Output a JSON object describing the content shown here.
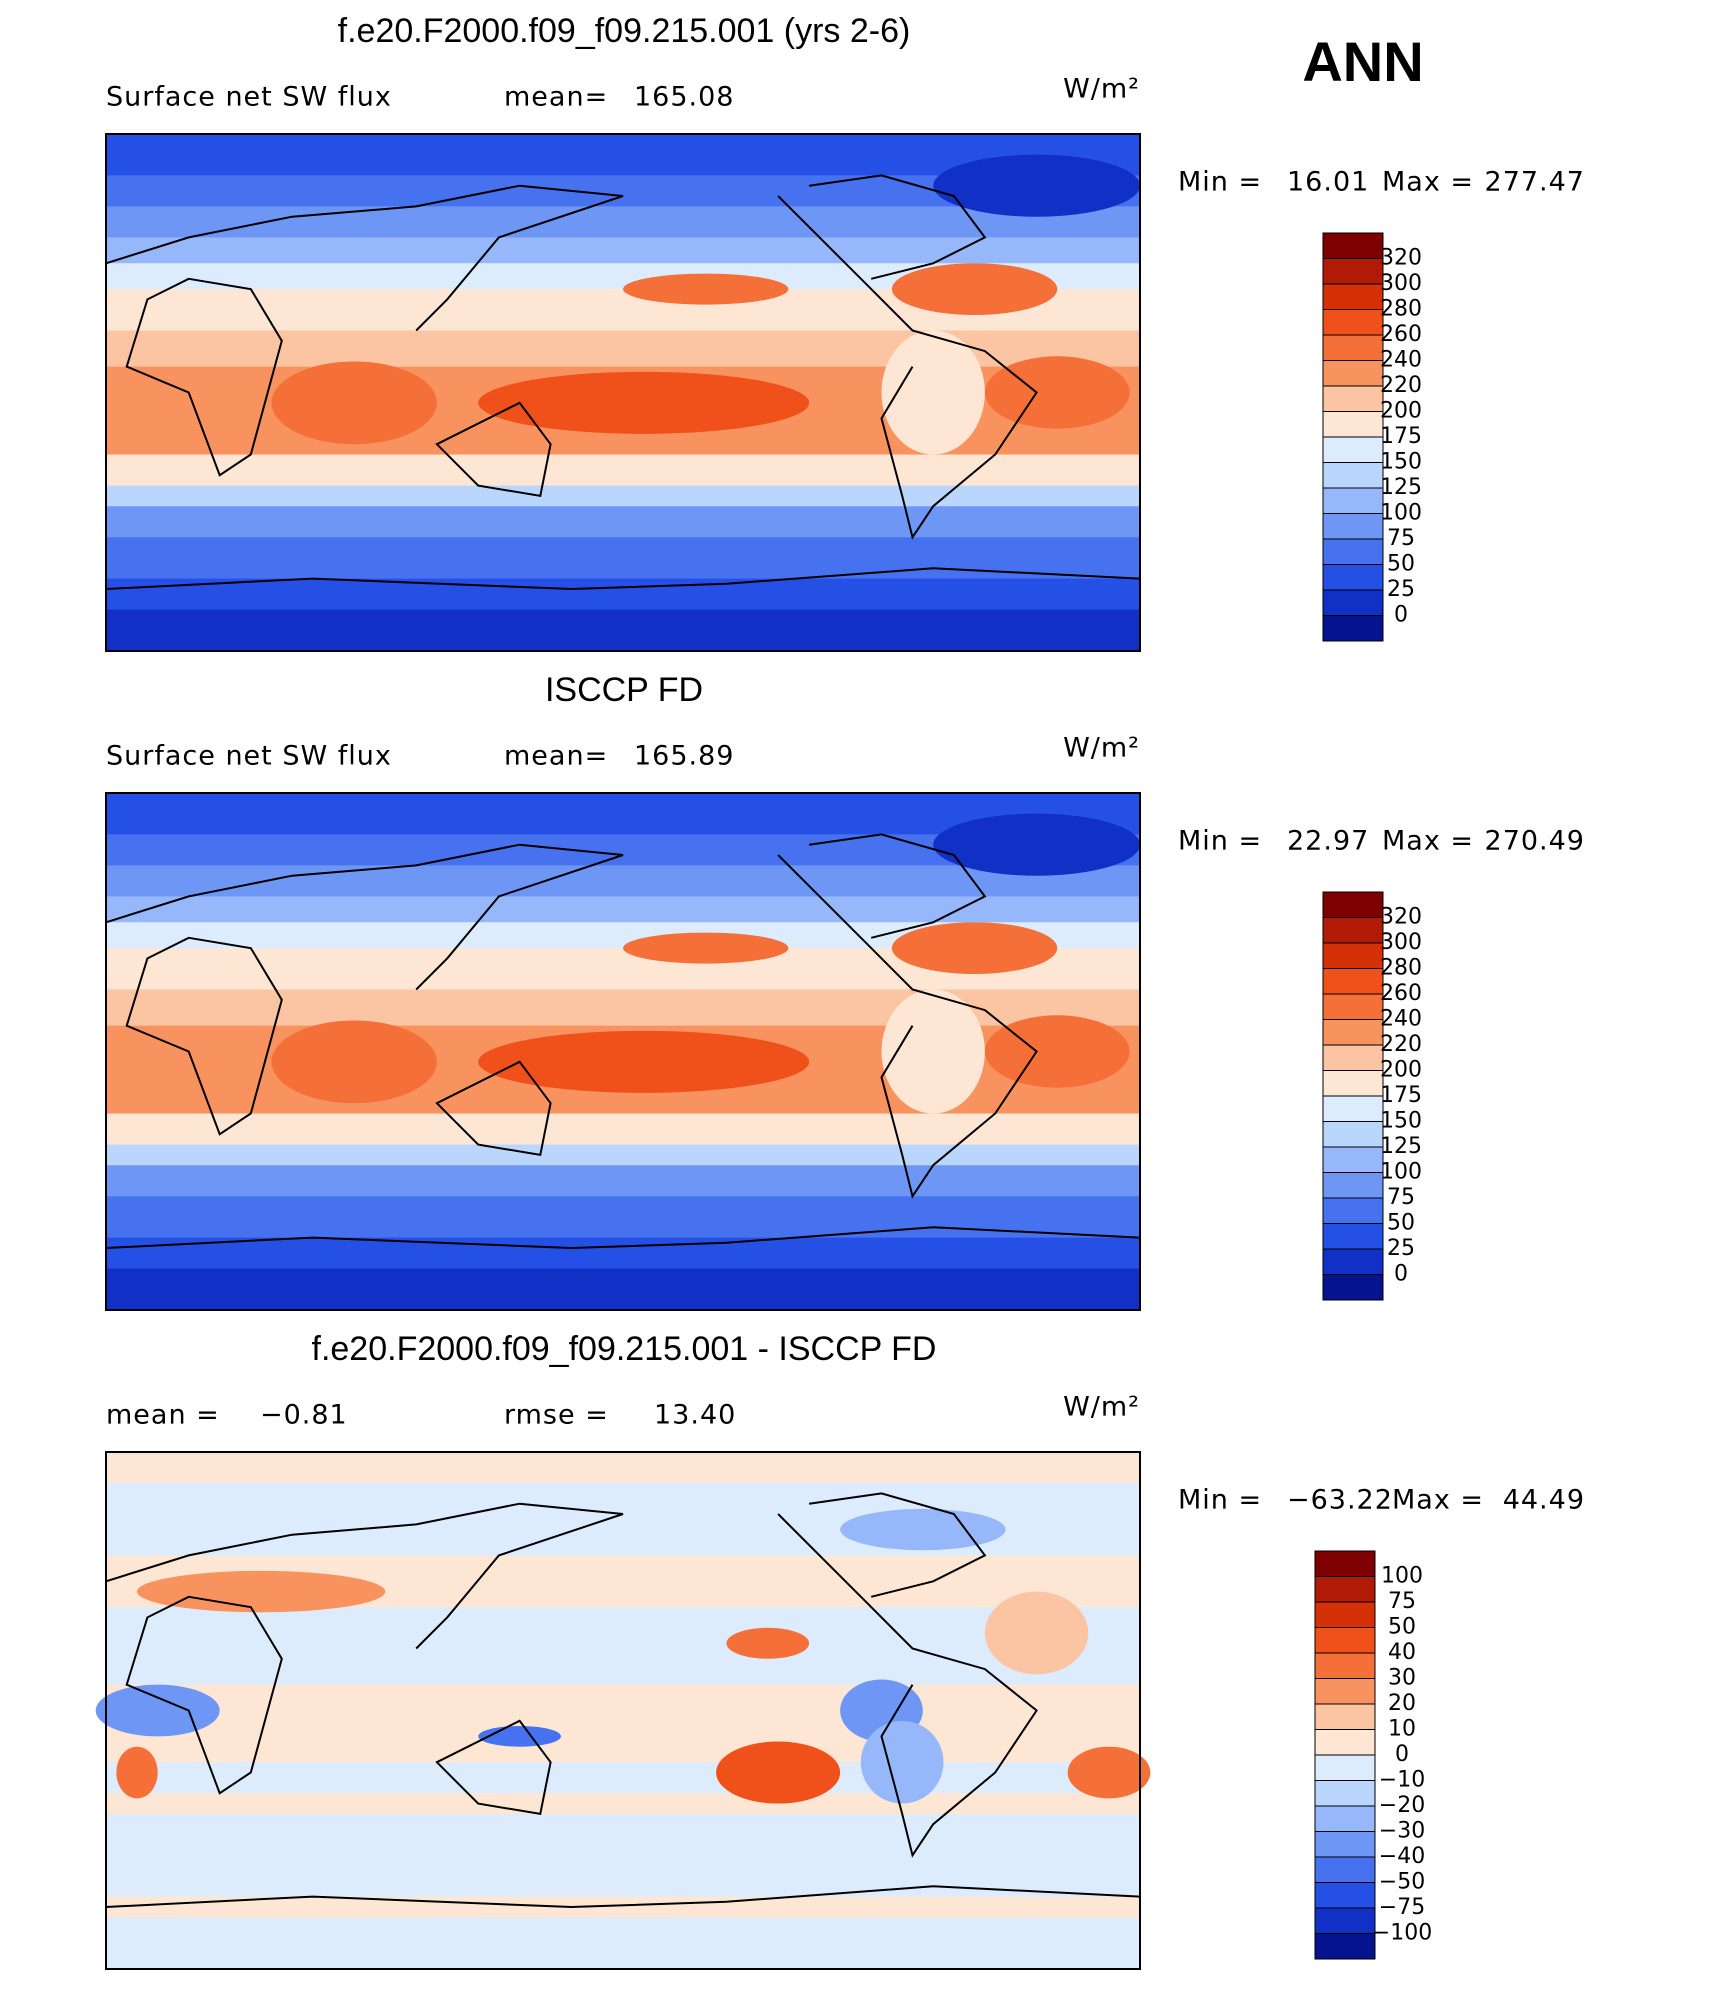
{
  "label": "ANN",
  "panels": [
    {
      "title": "f.e20.F2000.f09_f09.215.001 (yrs 2-6)",
      "left": "Surface net SW flux",
      "stat_a": "mean=",
      "stat_a_value": "165.08",
      "units": "W/m²",
      "min_label": "Min =",
      "min": "16.01",
      "max_label": "Max =",
      "max": "277.47",
      "levels": [
        "320",
        "300",
        "280",
        "260",
        "240",
        "220",
        "200",
        "175",
        "150",
        "125",
        "100",
        "75",
        "50",
        "25",
        "0"
      ]
    },
    {
      "title": "ISCCP FD",
      "left": "Surface net SW flux",
      "stat_a": "mean=",
      "stat_a_value": "165.89",
      "units": "W/m²",
      "min_label": "Min =",
      "min": "22.97",
      "max_label": "Max =",
      "max": "270.49",
      "levels": [
        "320",
        "300",
        "280",
        "260",
        "240",
        "220",
        "200",
        "175",
        "150",
        "125",
        "100",
        "75",
        "50",
        "25",
        "0"
      ]
    },
    {
      "title": "f.e20.F2000.f09_f09.215.001 - ISCCP FD",
      "left": "mean =",
      "left_value": "−0.81",
      "stat_a": "rmse =",
      "stat_a_value": "13.40",
      "units": "W/m²",
      "min_label": "Min =",
      "min": "−63.22",
      "max_label": "Max =",
      "max": "44.49",
      "levels": [
        "100",
        "75",
        "50",
        "40",
        "30",
        "20",
        "10",
        "0",
        "−10",
        "−20",
        "−30",
        "−40",
        "−50",
        "−75",
        "−100"
      ]
    }
  ]
}
